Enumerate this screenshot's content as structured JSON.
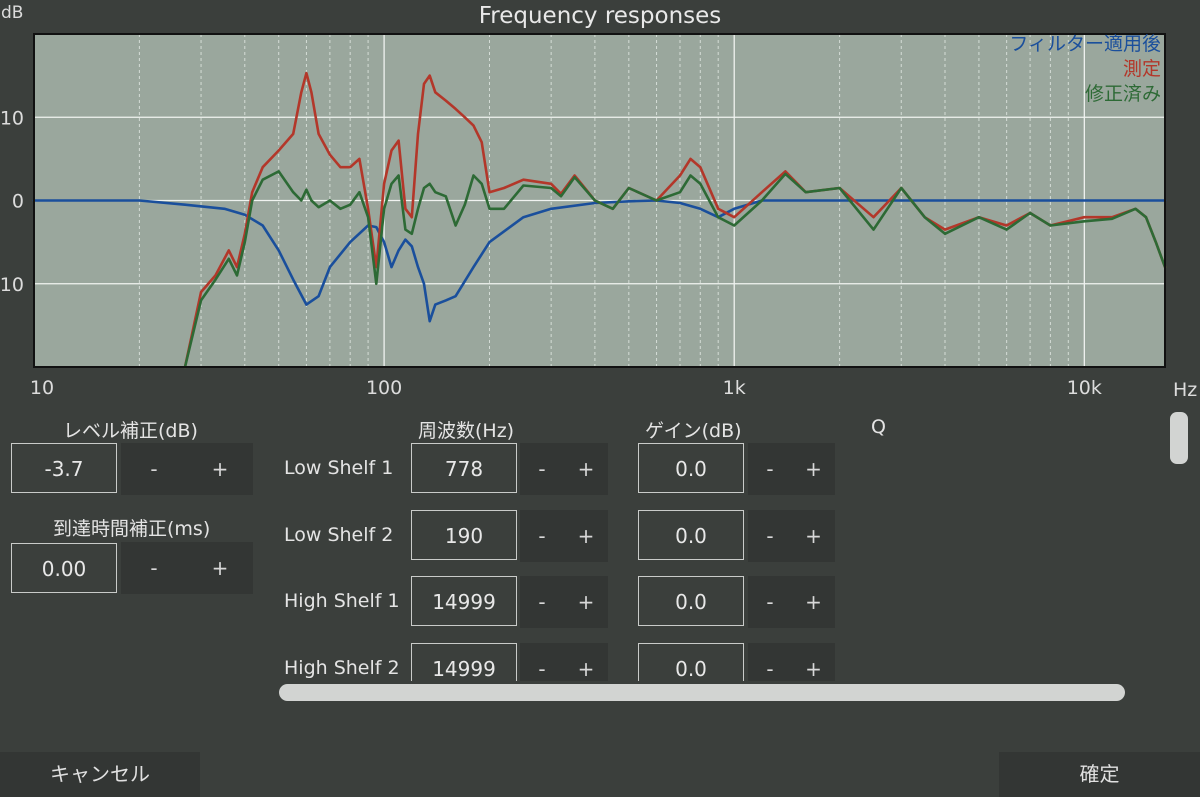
{
  "title": "Frequency responses",
  "chart_data": {
    "type": "line",
    "y_unit_label": "dB",
    "x_unit_label": "Hz",
    "x_scale": "log",
    "xlim": [
      10,
      17000
    ],
    "ylim": [
      -20,
      20
    ],
    "x_ticks": [
      {
        "value": 10,
        "label": "10"
      },
      {
        "value": 100,
        "label": "100"
      },
      {
        "value": 1000,
        "label": "1k"
      },
      {
        "value": 10000,
        "label": "10k"
      }
    ],
    "y_ticks": [
      {
        "value": 10,
        "label": "10"
      },
      {
        "value": 0,
        "label": "0"
      },
      {
        "value": -10,
        "label": "-10"
      }
    ],
    "grid": true,
    "legend_position": "top-right",
    "series": [
      {
        "name": "フィルター適用後",
        "color": "#1a4f9c",
        "points": [
          [
            10,
            0
          ],
          [
            20,
            0
          ],
          [
            27,
            -0.5
          ],
          [
            35,
            -1
          ],
          [
            40,
            -1.7
          ],
          [
            45,
            -3
          ],
          [
            50,
            -6
          ],
          [
            55,
            -9.5
          ],
          [
            60,
            -12.5
          ],
          [
            65,
            -11.5
          ],
          [
            70,
            -8
          ],
          [
            80,
            -5
          ],
          [
            90,
            -3
          ],
          [
            95,
            -3.2
          ],
          [
            100,
            -5
          ],
          [
            105,
            -8
          ],
          [
            110,
            -6
          ],
          [
            115,
            -4.7
          ],
          [
            120,
            -5.5
          ],
          [
            125,
            -8
          ],
          [
            130,
            -10
          ],
          [
            135,
            -14.5
          ],
          [
            140,
            -12.5
          ],
          [
            150,
            -12
          ],
          [
            160,
            -11.5
          ],
          [
            180,
            -8
          ],
          [
            200,
            -5
          ],
          [
            250,
            -2
          ],
          [
            300,
            -1
          ],
          [
            400,
            -0.3
          ],
          [
            500,
            -0.1
          ],
          [
            600,
            0
          ],
          [
            700,
            -0.3
          ],
          [
            800,
            -1
          ],
          [
            900,
            -2
          ],
          [
            1000,
            -1
          ],
          [
            1200,
            0
          ],
          [
            2000,
            0
          ],
          [
            5000,
            0
          ],
          [
            10000,
            0
          ],
          [
            17000,
            0
          ]
        ]
      },
      {
        "name": "測定",
        "color": "#b3372a",
        "points": [
          [
            27,
            -20
          ],
          [
            30,
            -11
          ],
          [
            33,
            -9
          ],
          [
            36,
            -6
          ],
          [
            38,
            -8
          ],
          [
            40,
            -4
          ],
          [
            42,
            1
          ],
          [
            45,
            4
          ],
          [
            50,
            6
          ],
          [
            55,
            8
          ],
          [
            58,
            13
          ],
          [
            60,
            15.3
          ],
          [
            62,
            13
          ],
          [
            65,
            8
          ],
          [
            70,
            5.5
          ],
          [
            75,
            4
          ],
          [
            80,
            4
          ],
          [
            85,
            5
          ],
          [
            90,
            -1
          ],
          [
            95,
            -8
          ],
          [
            100,
            2
          ],
          [
            105,
            6
          ],
          [
            110,
            7.2
          ],
          [
            115,
            -1
          ],
          [
            120,
            -2
          ],
          [
            125,
            8
          ],
          [
            130,
            14
          ],
          [
            135,
            15
          ],
          [
            140,
            13
          ],
          [
            150,
            12
          ],
          [
            160,
            11
          ],
          [
            170,
            10
          ],
          [
            180,
            9
          ],
          [
            190,
            7
          ],
          [
            200,
            1
          ],
          [
            220,
            1.5
          ],
          [
            250,
            2.5
          ],
          [
            300,
            2
          ],
          [
            320,
            0.8
          ],
          [
            350,
            3
          ],
          [
            400,
            0
          ],
          [
            450,
            -1
          ],
          [
            500,
            1.5
          ],
          [
            600,
            0
          ],
          [
            700,
            3
          ],
          [
            750,
            5
          ],
          [
            800,
            4
          ],
          [
            900,
            -1
          ],
          [
            1000,
            -2
          ],
          [
            1200,
            1
          ],
          [
            1400,
            3.5
          ],
          [
            1600,
            1
          ],
          [
            2000,
            1.5
          ],
          [
            2500,
            -2
          ],
          [
            3000,
            1.5
          ],
          [
            3500,
            -2
          ],
          [
            4000,
            -3.5
          ],
          [
            5000,
            -2
          ],
          [
            6000,
            -3
          ],
          [
            7000,
            -1.5
          ],
          [
            8000,
            -3
          ],
          [
            10000,
            -2
          ],
          [
            12000,
            -2
          ],
          [
            14000,
            -1
          ],
          [
            15000,
            -2
          ],
          [
            16000,
            -5
          ],
          [
            17000,
            -8
          ]
        ]
      },
      {
        "name": "修正済み",
        "color": "#2d6a35",
        "points": [
          [
            27,
            -20
          ],
          [
            30,
            -12
          ],
          [
            33,
            -9.5
          ],
          [
            36,
            -7
          ],
          [
            38,
            -9
          ],
          [
            40,
            -5
          ],
          [
            42,
            0
          ],
          [
            45,
            2.5
          ],
          [
            50,
            3.5
          ],
          [
            55,
            1
          ],
          [
            58,
            0
          ],
          [
            60,
            1.3
          ],
          [
            62,
            0
          ],
          [
            65,
            -0.8
          ],
          [
            70,
            0
          ],
          [
            75,
            -1
          ],
          [
            80,
            -0.5
          ],
          [
            85,
            1
          ],
          [
            90,
            -2
          ],
          [
            95,
            -10
          ],
          [
            100,
            -1
          ],
          [
            105,
            2
          ],
          [
            110,
            3
          ],
          [
            115,
            -3.5
          ],
          [
            120,
            -4
          ],
          [
            125,
            -1
          ],
          [
            130,
            1.5
          ],
          [
            135,
            2
          ],
          [
            140,
            1
          ],
          [
            150,
            0.5
          ],
          [
            160,
            -3
          ],
          [
            170,
            -0.5
          ],
          [
            180,
            3
          ],
          [
            190,
            2
          ],
          [
            200,
            -1
          ],
          [
            220,
            -1
          ],
          [
            250,
            1.8
          ],
          [
            300,
            1.5
          ],
          [
            320,
            0.5
          ],
          [
            350,
            2.8
          ],
          [
            400,
            0
          ],
          [
            450,
            -1
          ],
          [
            500,
            1.5
          ],
          [
            600,
            0
          ],
          [
            700,
            1
          ],
          [
            750,
            3
          ],
          [
            800,
            2
          ],
          [
            900,
            -2
          ],
          [
            1000,
            -3
          ],
          [
            1200,
            0
          ],
          [
            1400,
            3.2
          ],
          [
            1600,
            1
          ],
          [
            2000,
            1.5
          ],
          [
            2500,
            -3.5
          ],
          [
            3000,
            1.5
          ],
          [
            3500,
            -2
          ],
          [
            4000,
            -4
          ],
          [
            5000,
            -2
          ],
          [
            6000,
            -3.5
          ],
          [
            7000,
            -1.5
          ],
          [
            8000,
            -3
          ],
          [
            10000,
            -2.5
          ],
          [
            12000,
            -2.2
          ],
          [
            14000,
            -1
          ],
          [
            15000,
            -2
          ],
          [
            16000,
            -5
          ],
          [
            17000,
            -8
          ]
        ]
      }
    ]
  },
  "level_correction": {
    "label": "レベル補正(dB)",
    "value": "-3.7",
    "minus": "-",
    "plus": "+"
  },
  "arrival_time": {
    "label": "到達時間補正(ms)",
    "value": "0.00",
    "minus": "-",
    "plus": "+"
  },
  "columns": {
    "freq": "周波数(Hz)",
    "gain": "ゲイン(dB)",
    "q": "Q"
  },
  "filters": [
    {
      "name": "Low Shelf 1",
      "freq": "778",
      "gain": "0.0"
    },
    {
      "name": "Low Shelf 2",
      "freq": "190",
      "gain": "0.0"
    },
    {
      "name": "High Shelf 1",
      "freq": "14999",
      "gain": "0.0"
    },
    {
      "name": "High Shelf 2",
      "freq": "14999",
      "gain": "0.0"
    }
  ],
  "stepper": {
    "minus": "-",
    "plus": "+"
  },
  "footer": {
    "cancel": "キャンセル",
    "confirm": "確定"
  }
}
